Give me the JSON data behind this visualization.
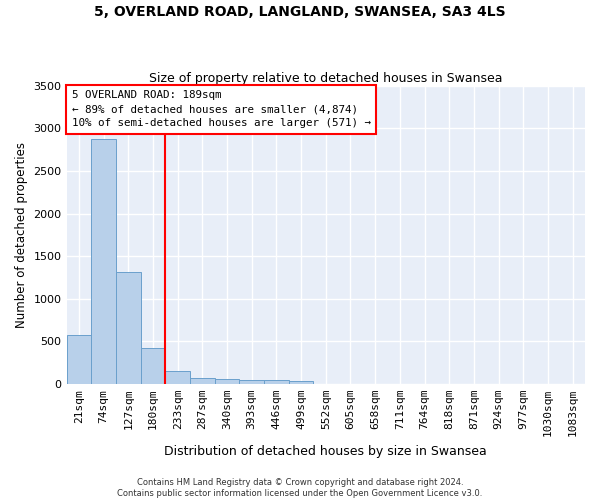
{
  "title": "5, OVERLAND ROAD, LANGLAND, SWANSEA, SA3 4LS",
  "subtitle": "Size of property relative to detached houses in Swansea",
  "xlabel": "Distribution of detached houses by size in Swansea",
  "ylabel": "Number of detached properties",
  "bar_labels": [
    "21sqm",
    "74sqm",
    "127sqm",
    "180sqm",
    "233sqm",
    "287sqm",
    "340sqm",
    "393sqm",
    "446sqm",
    "499sqm",
    "552sqm",
    "605sqm",
    "658sqm",
    "711sqm",
    "764sqm",
    "818sqm",
    "871sqm",
    "924sqm",
    "977sqm",
    "1030sqm",
    "1083sqm"
  ],
  "bar_values": [
    570,
    2870,
    1310,
    420,
    155,
    75,
    55,
    50,
    45,
    35,
    5,
    5,
    3,
    2,
    2,
    1,
    1,
    1,
    1,
    1,
    1
  ],
  "bar_color": "#b8d0ea",
  "bar_edge_color": "#6aa0cc",
  "red_line_x": 3.5,
  "annotation_line1": "5 OVERLAND ROAD: 189sqm",
  "annotation_line2": "← 89% of detached houses are smaller (4,874)",
  "annotation_line3": "10% of semi-detached houses are larger (571) →",
  "ylim": [
    0,
    3500
  ],
  "yticks": [
    0,
    500,
    1000,
    1500,
    2000,
    2500,
    3000,
    3500
  ],
  "background_color": "#e8eef8",
  "grid_color": "#ffffff",
  "footer_line1": "Contains HM Land Registry data © Crown copyright and database right 2024.",
  "footer_line2": "Contains public sector information licensed under the Open Government Licence v3.0."
}
